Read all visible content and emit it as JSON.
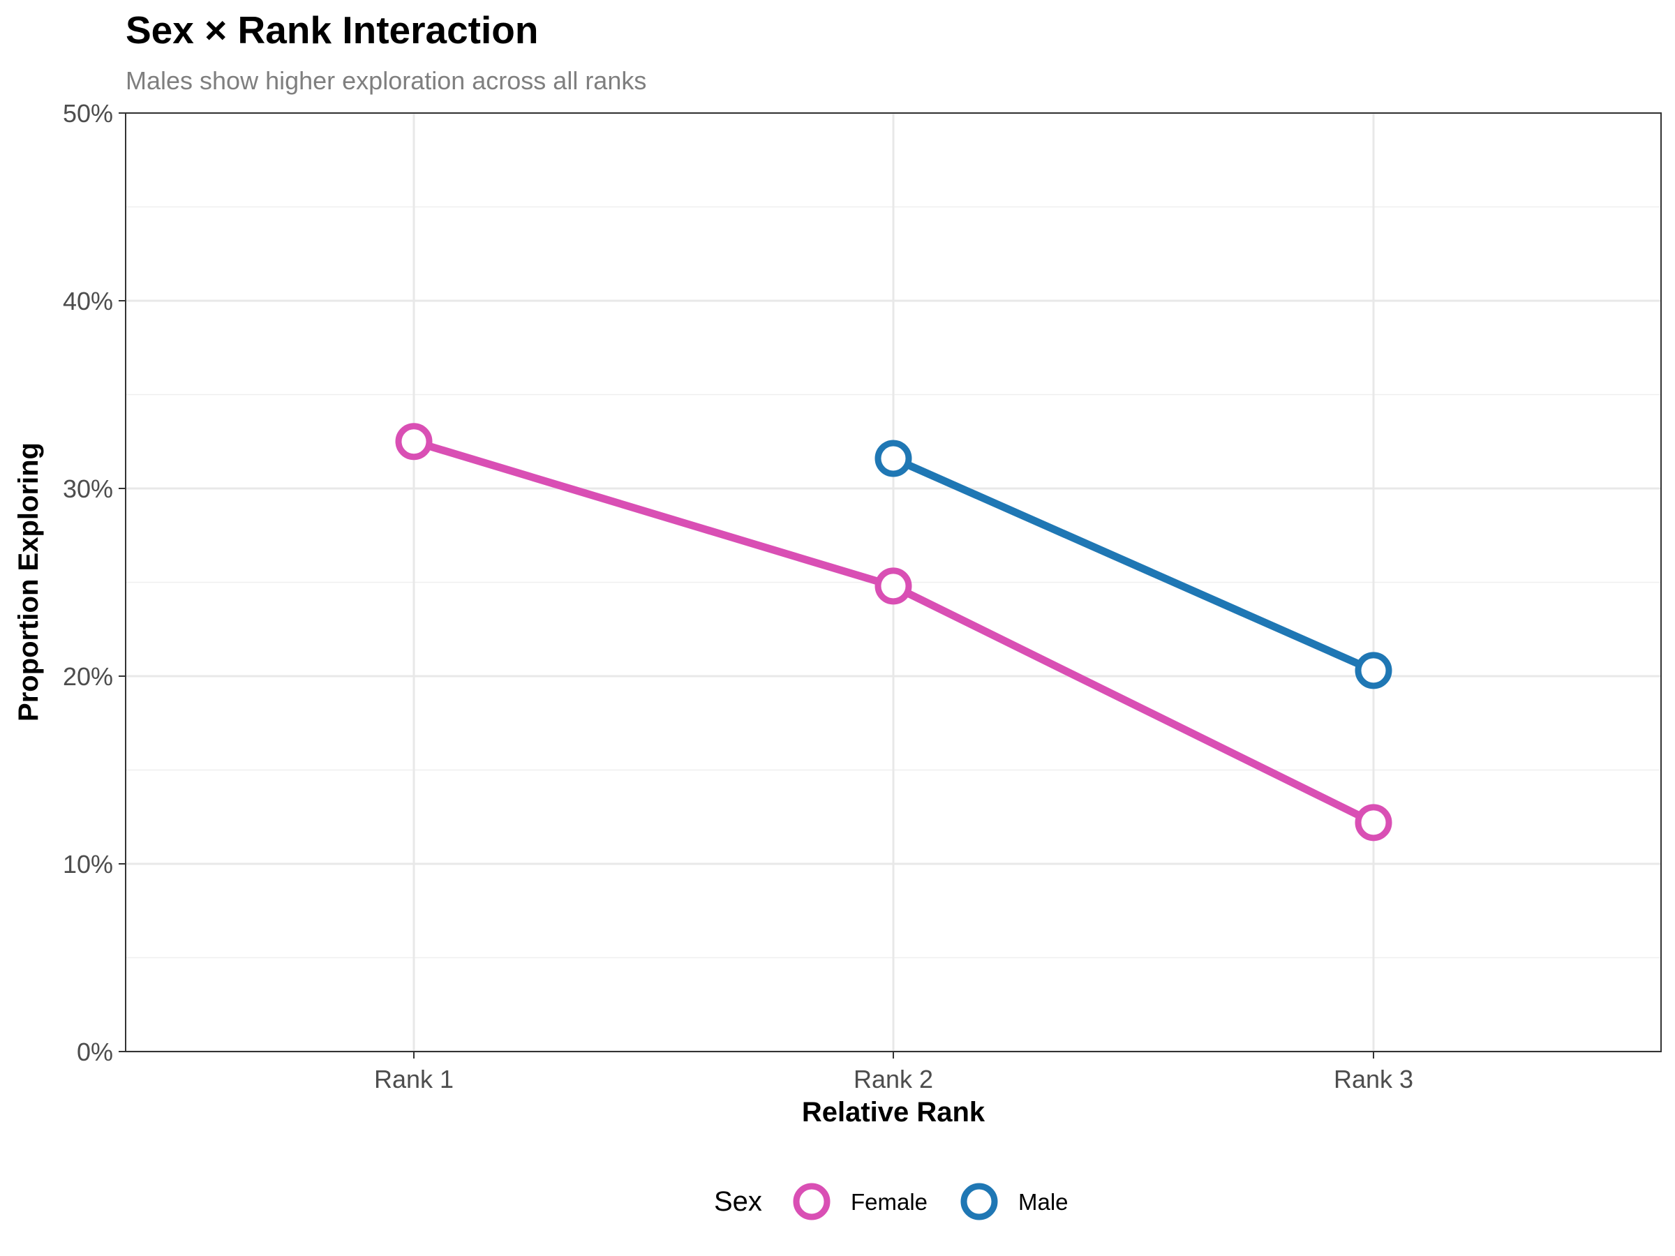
{
  "chart_data": {
    "type": "line",
    "title": "Sex × Rank Interaction",
    "subtitle": "Males show higher exploration across all ranks",
    "xlabel": "Relative Rank",
    "ylabel": "Proportion Exploring",
    "categories": [
      "Rank 1",
      "Rank 2",
      "Rank 3"
    ],
    "ylim": [
      0,
      0.5
    ],
    "yticks": [
      0,
      0.1,
      0.2,
      0.3,
      0.4,
      0.5
    ],
    "ytick_labels": [
      "0%",
      "10%",
      "20%",
      "30%",
      "40%",
      "50%"
    ],
    "grid": true,
    "legend": {
      "title": "Sex",
      "position": "bottom"
    },
    "series": [
      {
        "name": "Female",
        "color": "#d94fb4",
        "values": [
          0.325,
          0.248,
          0.122
        ]
      },
      {
        "name": "Male",
        "color": "#1f77b4",
        "values": [
          null,
          0.316,
          0.203
        ]
      }
    ]
  }
}
